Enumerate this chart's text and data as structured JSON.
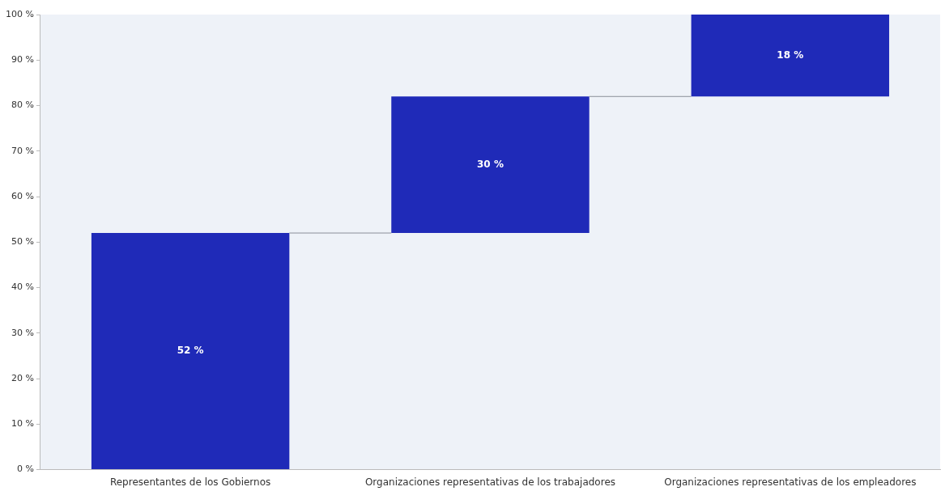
{
  "chart_data": {
    "type": "bar",
    "categories": [
      "Representantes de los Gobiernos",
      "Organizaciones representativas de los trabajadores",
      "Organizaciones representativas de los empleadores"
    ],
    "values": [
      52,
      30,
      18
    ],
    "base": [
      0,
      52,
      82
    ],
    "color": "#1f2ab8",
    "value_labels": [
      "52 %",
      "30 %",
      "18 %"
    ],
    "ylim": [
      0,
      100
    ],
    "yticks": [
      {
        "value": 0,
        "label": "0 %"
      },
      {
        "value": 10,
        "label": "10 %"
      },
      {
        "value": 20,
        "label": "20 %"
      },
      {
        "value": 30,
        "label": "30 %"
      },
      {
        "value": 40,
        "label": "40 %"
      },
      {
        "value": 50,
        "label": "50 %"
      },
      {
        "value": 60,
        "label": "60 %"
      },
      {
        "value": 70,
        "label": "70 %"
      },
      {
        "value": 80,
        "label": "80 %"
      },
      {
        "value": 90,
        "label": "90 %"
      },
      {
        "value": 100,
        "label": "100 %"
      }
    ],
    "ref_lines": [
      {
        "axis": "y",
        "value": 52,
        "color": "#8a8f99"
      },
      {
        "axis": "y",
        "value": 82,
        "color": "#8a8f99"
      }
    ],
    "grid": false,
    "legend": false
  }
}
